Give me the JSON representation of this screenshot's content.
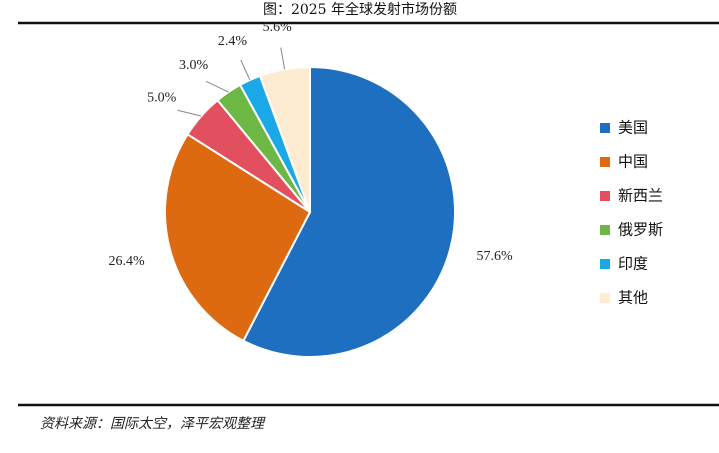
{
  "chart_data": {
    "type": "pie",
    "title": "图：2025 年全球发射市场份额",
    "categories": [
      "美国",
      "中国",
      "新西兰",
      "俄罗斯",
      "印度",
      "其他"
    ],
    "values": [
      57.6,
      26.4,
      5.0,
      3.0,
      2.4,
      5.6
    ],
    "value_labels": [
      "57.6%",
      "26.4%",
      "5.0%",
      "3.0%",
      "2.4%",
      "5.6%"
    ],
    "colors": [
      "#1f6fc0",
      "#dd6a10",
      "#e2505f",
      "#6db845",
      "#1ba8e6",
      "#fdebd2"
    ],
    "legend": "right",
    "source": "资料来源：国际太空，泽平宏观整理"
  }
}
